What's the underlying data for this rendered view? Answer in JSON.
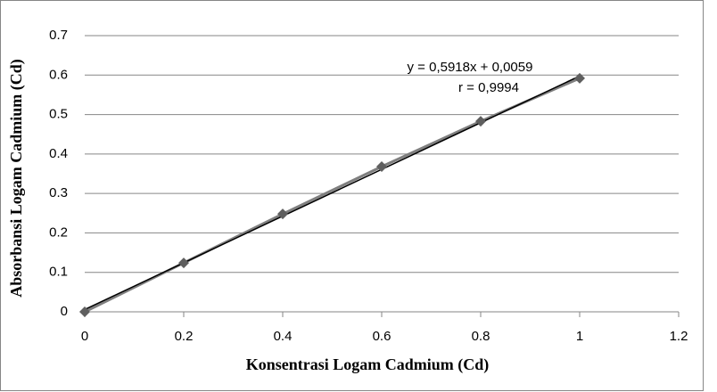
{
  "chart_data": {
    "type": "scatter",
    "x_label": "Konsentrasi Logam Cadmium (Cd)",
    "y_label": "Absorbansi Logam Cadmium (Cd)",
    "x": [
      0,
      0.2,
      0.4,
      0.6,
      0.8,
      1
    ],
    "series": [
      {
        "color": "#7f7f7f",
        "values": [
          0,
          0.124,
          0.248,
          0.368,
          0.483,
          0.592
        ]
      }
    ],
    "trendline": {
      "slope": 0.5918,
      "intercept": 0.0059,
      "color": "#000000"
    },
    "annotations": [
      "y = 0,5918x + 0,0059",
      "r = 0,9994"
    ],
    "xlim": [
      0,
      1.2
    ],
    "xticks": [
      0,
      0.2,
      0.4,
      0.6,
      0.8,
      1,
      1.2
    ],
    "ylim": [
      0,
      0.7
    ],
    "yticks": [
      0,
      0.1,
      0.2,
      0.3,
      0.4,
      0.5,
      0.6,
      0.7
    ],
    "grid": true
  }
}
